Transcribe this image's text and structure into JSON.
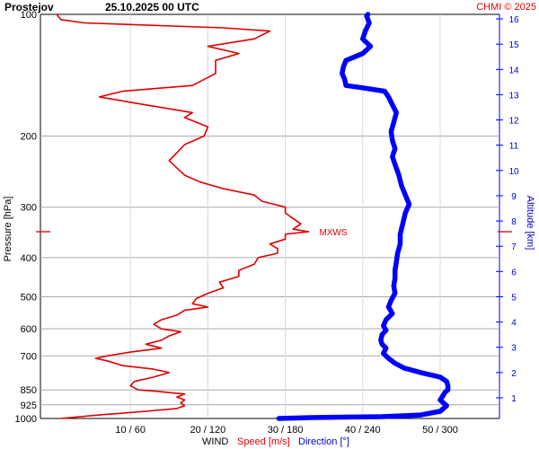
{
  "header": {
    "station": "Prostejov",
    "datetime": "25.10.2025 00 UTC",
    "credit": "CHMI © 2025"
  },
  "chart_data": {
    "type": "line",
    "title": "Prostejov   25.10.2025 00 UTC",
    "ylabel": "Pressure [hPa]",
    "y2label": "Altitude [km]",
    "xlabel_parts": [
      "WIND",
      "Speed [m/s]",
      "Direction [°]"
    ],
    "y_scale": "log",
    "ylim": [
      1000,
      100
    ],
    "pressure_ticks": [
      "100",
      "200",
      "300",
      "400",
      "500",
      "600",
      "700",
      "850",
      "925",
      "1000"
    ],
    "altitude_ticks": [
      "1",
      "2",
      "3",
      "4",
      "5",
      "6",
      "7",
      "8",
      "9",
      "10",
      "11",
      "12",
      "13",
      "14",
      "15",
      "16"
    ],
    "x_ticks": [
      "10 / 60",
      "20 / 120",
      "30 / 180",
      "40 / 240",
      "50 / 300"
    ],
    "xlim_speed": [
      0,
      59
    ],
    "xlim_direction": [
      0,
      354
    ],
    "annotation": {
      "text": "MXWS",
      "pressure": 345,
      "speed": 33
    },
    "colors": {
      "speed": "#e00000",
      "direction": "#0000ff",
      "grid": "#aaaaaa",
      "title": "#000000",
      "credit": "#e00000"
    },
    "series": [
      {
        "name": "Speed [m/s]",
        "color": "#e00000",
        "points": [
          [
            1000,
            1
          ],
          [
            980,
            6
          ],
          [
            960,
            12
          ],
          [
            945,
            16
          ],
          [
            930,
            17
          ],
          [
            915,
            16.5
          ],
          [
            900,
            17
          ],
          [
            885,
            16
          ],
          [
            870,
            17
          ],
          [
            855,
            13
          ],
          [
            850,
            11
          ],
          [
            830,
            10
          ],
          [
            810,
            10.5
          ],
          [
            790,
            13
          ],
          [
            770,
            15
          ],
          [
            755,
            13
          ],
          [
            740,
            9
          ],
          [
            720,
            7
          ],
          [
            710,
            5.5
          ],
          [
            700,
            7
          ],
          [
            685,
            10
          ],
          [
            670,
            14
          ],
          [
            655,
            12
          ],
          [
            640,
            14
          ],
          [
            625,
            15
          ],
          [
            610,
            16.5
          ],
          [
            600,
            14
          ],
          [
            585,
            13
          ],
          [
            570,
            14
          ],
          [
            555,
            16
          ],
          [
            540,
            17
          ],
          [
            530,
            20
          ],
          [
            520,
            18
          ],
          [
            505,
            18.5
          ],
          [
            490,
            20
          ],
          [
            475,
            22
          ],
          [
            460,
            21.5
          ],
          [
            445,
            24
          ],
          [
            430,
            24
          ],
          [
            415,
            26
          ],
          [
            400,
            26.5
          ],
          [
            390,
            29
          ],
          [
            380,
            29
          ],
          [
            370,
            28
          ],
          [
            360,
            30
          ],
          [
            350,
            30
          ],
          [
            345,
            33
          ],
          [
            340,
            31
          ],
          [
            330,
            32
          ],
          [
            320,
            31
          ],
          [
            310,
            30
          ],
          [
            300,
            30
          ],
          [
            290,
            27
          ],
          [
            280,
            26
          ],
          [
            270,
            22
          ],
          [
            260,
            19
          ],
          [
            250,
            17
          ],
          [
            240,
            16
          ],
          [
            230,
            15
          ],
          [
            220,
            16
          ],
          [
            210,
            17
          ],
          [
            200,
            19.5
          ],
          [
            190,
            20
          ],
          [
            180,
            17
          ],
          [
            175,
            18
          ],
          [
            170,
            14
          ],
          [
            165,
            10
          ],
          [
            160,
            6
          ],
          [
            155,
            9
          ],
          [
            150,
            18
          ],
          [
            140,
            21
          ],
          [
            130,
            21
          ],
          [
            125,
            24
          ],
          [
            120,
            20
          ],
          [
            115,
            26
          ],
          [
            110,
            28
          ],
          [
            108,
            22
          ],
          [
            105,
            4
          ],
          [
            103,
            1
          ],
          [
            100,
            0.5
          ]
        ]
      },
      {
        "name": "Direction [°]",
        "color": "#0000ff",
        "points": [
          [
            1000,
            175
          ],
          [
            995,
            200
          ],
          [
            990,
            255
          ],
          [
            980,
            285
          ],
          [
            960,
            300
          ],
          [
            930,
            305
          ],
          [
            900,
            300
          ],
          [
            880,
            302
          ],
          [
            860,
            304
          ],
          [
            850,
            306
          ],
          [
            830,
            306
          ],
          [
            810,
            305
          ],
          [
            790,
            300
          ],
          [
            770,
            285
          ],
          [
            750,
            272
          ],
          [
            730,
            265
          ],
          [
            710,
            260
          ],
          [
            690,
            256
          ],
          [
            670,
            258
          ],
          [
            655,
            255
          ],
          [
            640,
            254
          ],
          [
            620,
            255
          ],
          [
            605,
            258
          ],
          [
            590,
            256
          ],
          [
            570,
            258
          ],
          [
            550,
            263
          ],
          [
            530,
            260
          ],
          [
            510,
            262
          ],
          [
            490,
            265
          ],
          [
            470,
            264
          ],
          [
            450,
            265
          ],
          [
            430,
            265
          ],
          [
            410,
            266
          ],
          [
            390,
            267
          ],
          [
            370,
            269
          ],
          [
            350,
            269
          ],
          [
            330,
            271
          ],
          [
            310,
            273
          ],
          [
            295,
            276
          ],
          [
            280,
            273
          ],
          [
            265,
            270
          ],
          [
            250,
            268
          ],
          [
            235,
            265
          ],
          [
            225,
            263
          ],
          [
            215,
            265
          ],
          [
            205,
            263
          ],
          [
            195,
            262
          ],
          [
            185,
            264
          ],
          [
            175,
            266
          ],
          [
            165,
            262
          ],
          [
            160,
            260
          ],
          [
            155,
            257
          ],
          [
            152,
            240
          ],
          [
            150,
            227
          ],
          [
            145,
            226
          ],
          [
            140,
            224
          ],
          [
            135,
            225
          ],
          [
            130,
            227
          ],
          [
            125,
            240
          ],
          [
            120,
            246
          ],
          [
            115,
            240
          ],
          [
            110,
            242
          ],
          [
            105,
            245
          ],
          [
            101,
            243
          ],
          [
            100,
            244
          ]
        ]
      }
    ]
  }
}
